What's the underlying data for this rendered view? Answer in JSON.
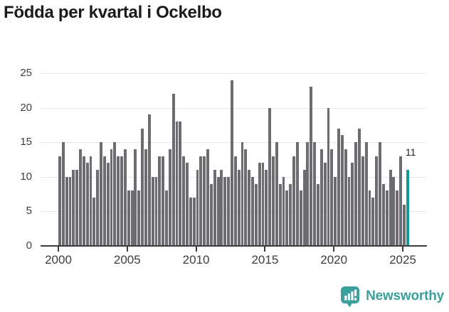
{
  "title": "Födda per kvartal i Ockelbo",
  "chart_data": {
    "type": "bar",
    "title": "Födda per kvartal i Ockelbo",
    "xlabel": "",
    "ylabel": "",
    "ylim": [
      0,
      25
    ],
    "grid": true,
    "y_ticks": [
      0,
      5,
      10,
      15,
      20,
      25
    ],
    "x_tick_labels": [
      "2000",
      "2005",
      "2010",
      "2015",
      "2020",
      "2025"
    ],
    "x_tick_years": [
      2000,
      2005,
      2010,
      2015,
      2020,
      2025
    ],
    "series": [
      {
        "name": "Födda per kvartal",
        "start_year": 2000,
        "start_quarter": 1,
        "frequency": "quarterly",
        "values": [
          13,
          15,
          10,
          10,
          11,
          11,
          14,
          13,
          12,
          13,
          7,
          11,
          15,
          13,
          12,
          14,
          15,
          13,
          13,
          14,
          8,
          8,
          14,
          8,
          17,
          14,
          19,
          10,
          10,
          13,
          13,
          8,
          14,
          22,
          18,
          18,
          13,
          12,
          7,
          7,
          11,
          13,
          13,
          14,
          9,
          11,
          10,
          11,
          10,
          10,
          24,
          13,
          11,
          15,
          14,
          11,
          10,
          9,
          12,
          12,
          11,
          20,
          13,
          15,
          9,
          10,
          8,
          9,
          13,
          15,
          8,
          11,
          15,
          23,
          15,
          9,
          14,
          12,
          20,
          14,
          10,
          17,
          16,
          14,
          10,
          12,
          15,
          17,
          13,
          15,
          8,
          7,
          13,
          15,
          9,
          8,
          11,
          10,
          8,
          13,
          6,
          11
        ]
      }
    ],
    "bar_color": "#6b6b70",
    "gridline_color": "#e6e6e6",
    "axis_color": "#3c3c3c",
    "highlight": {
      "index": 101,
      "label": "11",
      "color": "#119b9b"
    }
  },
  "footer": {
    "brand": "Newsworthy",
    "brand_color": "#3ba09d"
  }
}
